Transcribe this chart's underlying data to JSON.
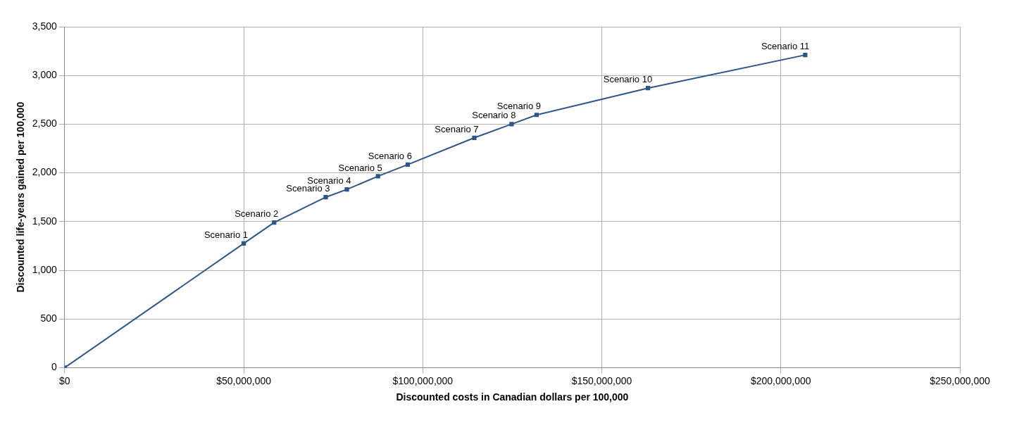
{
  "chart_data": {
    "type": "line",
    "xlabel": "Discounted costs in Canadian dollars per 100,000",
    "ylabel": "Discounted life-years gained per 100,000",
    "x": [
      0,
      50000000,
      58500000,
      72900000,
      78800000,
      87500000,
      95800000,
      114400000,
      124800000,
      131800000,
      162900000,
      206800000
    ],
    "series": [
      {
        "color": "#2e5588",
        "values": [
          0,
          1275,
          1490,
          1750,
          1830,
          1965,
          2085,
          2360,
          2500,
          2595,
          2870,
          3210
        ]
      }
    ],
    "xlim": [
      0,
      250000000
    ],
    "xticks": [
      {
        "value": 0,
        "label": "$0"
      },
      {
        "value": 50000000,
        "label": "$50,000,000"
      },
      {
        "value": 100000000,
        "label": "$100,000,000"
      },
      {
        "value": 150000000,
        "label": "$150,000,000"
      },
      {
        "value": 200000000,
        "label": "$200,000,000"
      },
      {
        "value": 250000000,
        "label": "$250,000,000"
      }
    ],
    "ylim": [
      0,
      3500
    ],
    "yticks": [
      0,
      500,
      {
        "value": 1000,
        "label": "1,000"
      },
      {
        "value": 1500,
        "label": "1,500"
      },
      {
        "value": 2000,
        "label": "2,000"
      },
      {
        "value": 2500,
        "label": "2,500"
      },
      {
        "value": 3000,
        "label": "3,000"
      },
      {
        "value": 3500,
        "label": "3,500"
      }
    ],
    "annotations": [
      {
        "text": "Scenario 1",
        "x": 50000000,
        "y": 1275
      },
      {
        "text": "Scenario 2",
        "x": 58500000,
        "y": 1490
      },
      {
        "text": "Scenario 3",
        "x": 72900000,
        "y": 1750
      },
      {
        "text": "Scenario 4",
        "x": 78800000,
        "y": 1830
      },
      {
        "text": "Scenario 5",
        "x": 87500000,
        "y": 1965
      },
      {
        "text": "Scenario 6",
        "x": 95800000,
        "y": 2085
      },
      {
        "text": "Scenario 7",
        "x": 114400000,
        "y": 2360
      },
      {
        "text": "Scenario 8",
        "x": 124800000,
        "y": 2500
      },
      {
        "text": "Scenario 9",
        "x": 131800000,
        "y": 2595
      },
      {
        "text": "Scenario 10",
        "x": 162900000,
        "y": 2870
      },
      {
        "text": "Scenario 11",
        "x": 206800000,
        "y": 3210
      }
    ],
    "grid": true,
    "legend": false,
    "marker": "square",
    "line_style": "solid"
  }
}
